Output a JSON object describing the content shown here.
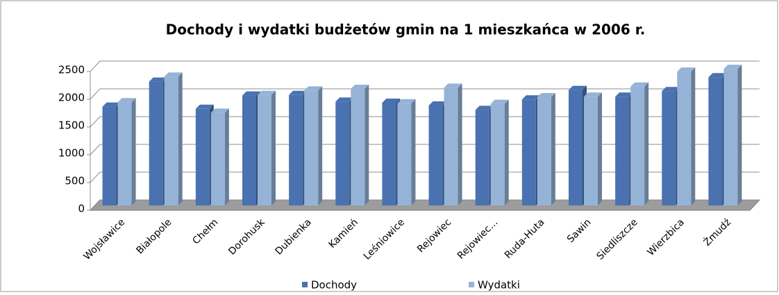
{
  "chart_data": {
    "type": "bar",
    "title": "Dochody i wydatki budżetów gmin na 1 mieszkańca w 2006 r.",
    "categories": [
      "Wojsławice",
      "Białopole",
      "Chełm",
      "Dorohusk",
      "Dubienka",
      "Kamień",
      "Leśniowice",
      "Rejowiec",
      "Rejowiec...",
      "Ruda-Huta",
      "Sawin",
      "Siedliszcze",
      "Wierzbica",
      "Żmudź"
    ],
    "series": [
      {
        "name": "Dochody",
        "color": "#4a72b0",
        "values": [
          1780,
          2230,
          1740,
          1980,
          1990,
          1870,
          1850,
          1800,
          1720,
          1910,
          2080,
          1960,
          2060,
          2310
        ]
      },
      {
        "name": "Wydatki",
        "color": "#95b3d7",
        "values": [
          1860,
          2320,
          1670,
          1990,
          2070,
          2100,
          1840,
          2120,
          1830,
          1950,
          1960,
          2140,
          2410,
          2460
        ]
      }
    ],
    "ylim": [
      0,
      2500
    ],
    "yticks": [
      0,
      500,
      1000,
      1500,
      2000,
      2500
    ],
    "grid": true,
    "legend": "bottom"
  }
}
